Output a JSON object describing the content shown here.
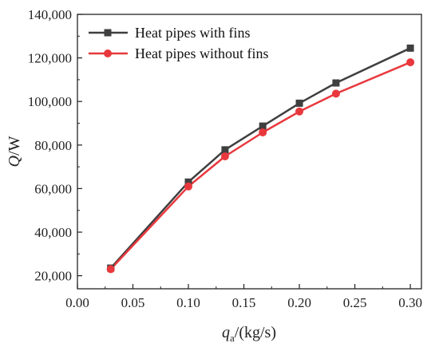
{
  "chart_data": {
    "type": "line",
    "title": "",
    "xlabel": "/(kg/s)",
    "xlabel_symbol": "q",
    "xlabel_subscript": "a",
    "ylabel": "/W",
    "ylabel_symbol": "Q",
    "xlim": [
      0.0,
      0.31
    ],
    "ylim": [
      14000,
      140000
    ],
    "x_ticks": [
      0.0,
      0.05,
      0.1,
      0.15,
      0.2,
      0.25,
      0.3
    ],
    "x_tick_labels": [
      "0.00",
      "0.05",
      "0.10",
      "0.15",
      "0.20",
      "0.25",
      "0.30"
    ],
    "y_ticks": [
      20000,
      40000,
      60000,
      80000,
      100000,
      120000,
      140000
    ],
    "y_tick_labels": [
      "20,000",
      "40,000",
      "60,000",
      "80,000",
      "100,000",
      "120,000",
      "140,000"
    ],
    "grid": false,
    "legend_position": "top-left",
    "x": [
      0.03,
      0.1,
      0.133,
      0.167,
      0.2,
      0.233,
      0.3
    ],
    "series": [
      {
        "name": "Heat pipes with fins",
        "marker": "square",
        "color": "#3f3f3f",
        "values": [
          23500,
          63000,
          77800,
          88700,
          99200,
          108500,
          124500
        ]
      },
      {
        "name": "Heat pipes without fins",
        "marker": "circle",
        "color": "#e8383d",
        "values": [
          23000,
          61000,
          74800,
          85800,
          95400,
          103600,
          118000
        ]
      }
    ]
  }
}
